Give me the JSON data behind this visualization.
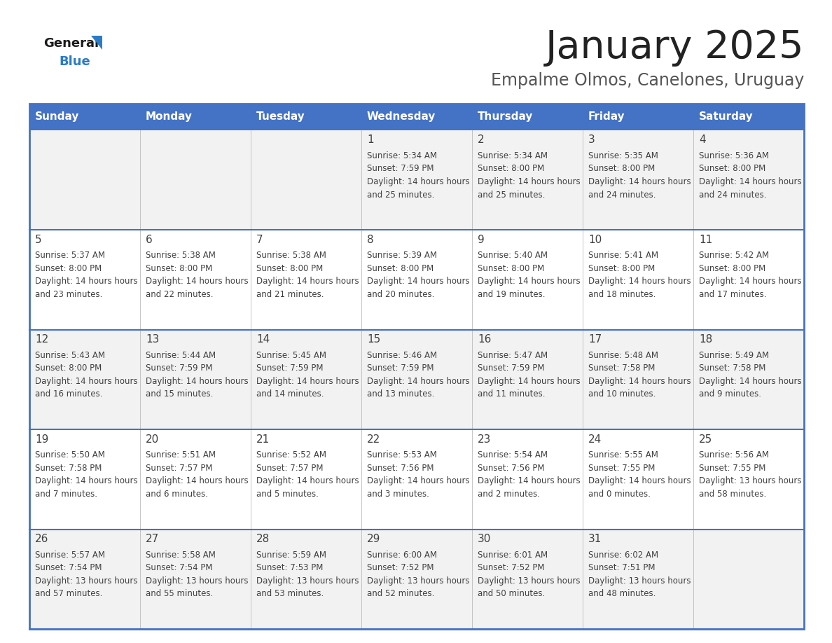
{
  "title": "January 2025",
  "subtitle": "Empalme Olmos, Canelones, Uruguay",
  "days_of_week": [
    "Sunday",
    "Monday",
    "Tuesday",
    "Wednesday",
    "Thursday",
    "Friday",
    "Saturday"
  ],
  "header_bg": "#4472c4",
  "header_text": "#ffffff",
  "cell_bg_odd": "#f2f2f2",
  "cell_bg_even": "#ffffff",
  "text_color": "#404040",
  "border_color": "#4472c4",
  "line_color": "#4472c4",
  "title_color": "#222222",
  "subtitle_color": "#555555",
  "logo_black": "#1a1a1a",
  "logo_blue": "#2a7cc7",
  "calendar_data": [
    [
      null,
      null,
      null,
      {
        "day": "1",
        "sunrise": "5:34 AM",
        "sunset": "7:59 PM",
        "daylight": "14 hours and 25 minutes"
      },
      {
        "day": "2",
        "sunrise": "5:34 AM",
        "sunset": "8:00 PM",
        "daylight": "14 hours and 25 minutes"
      },
      {
        "day": "3",
        "sunrise": "5:35 AM",
        "sunset": "8:00 PM",
        "daylight": "14 hours and 24 minutes"
      },
      {
        "day": "4",
        "sunrise": "5:36 AM",
        "sunset": "8:00 PM",
        "daylight": "14 hours and 24 minutes"
      }
    ],
    [
      {
        "day": "5",
        "sunrise": "5:37 AM",
        "sunset": "8:00 PM",
        "daylight": "14 hours and 23 minutes"
      },
      {
        "day": "6",
        "sunrise": "5:38 AM",
        "sunset": "8:00 PM",
        "daylight": "14 hours and 22 minutes"
      },
      {
        "day": "7",
        "sunrise": "5:38 AM",
        "sunset": "8:00 PM",
        "daylight": "14 hours and 21 minutes"
      },
      {
        "day": "8",
        "sunrise": "5:39 AM",
        "sunset": "8:00 PM",
        "daylight": "14 hours and 20 minutes"
      },
      {
        "day": "9",
        "sunrise": "5:40 AM",
        "sunset": "8:00 PM",
        "daylight": "14 hours and 19 minutes"
      },
      {
        "day": "10",
        "sunrise": "5:41 AM",
        "sunset": "8:00 PM",
        "daylight": "14 hours and 18 minutes"
      },
      {
        "day": "11",
        "sunrise": "5:42 AM",
        "sunset": "8:00 PM",
        "daylight": "14 hours and 17 minutes"
      }
    ],
    [
      {
        "day": "12",
        "sunrise": "5:43 AM",
        "sunset": "8:00 PM",
        "daylight": "14 hours and 16 minutes"
      },
      {
        "day": "13",
        "sunrise": "5:44 AM",
        "sunset": "7:59 PM",
        "daylight": "14 hours and 15 minutes"
      },
      {
        "day": "14",
        "sunrise": "5:45 AM",
        "sunset": "7:59 PM",
        "daylight": "14 hours and 14 minutes"
      },
      {
        "day": "15",
        "sunrise": "5:46 AM",
        "sunset": "7:59 PM",
        "daylight": "14 hours and 13 minutes"
      },
      {
        "day": "16",
        "sunrise": "5:47 AM",
        "sunset": "7:59 PM",
        "daylight": "14 hours and 11 minutes"
      },
      {
        "day": "17",
        "sunrise": "5:48 AM",
        "sunset": "7:58 PM",
        "daylight": "14 hours and 10 minutes"
      },
      {
        "day": "18",
        "sunrise": "5:49 AM",
        "sunset": "7:58 PM",
        "daylight": "14 hours and 9 minutes"
      }
    ],
    [
      {
        "day": "19",
        "sunrise": "5:50 AM",
        "sunset": "7:58 PM",
        "daylight": "14 hours and 7 minutes"
      },
      {
        "day": "20",
        "sunrise": "5:51 AM",
        "sunset": "7:57 PM",
        "daylight": "14 hours and 6 minutes"
      },
      {
        "day": "21",
        "sunrise": "5:52 AM",
        "sunset": "7:57 PM",
        "daylight": "14 hours and 5 minutes"
      },
      {
        "day": "22",
        "sunrise": "5:53 AM",
        "sunset": "7:56 PM",
        "daylight": "14 hours and 3 minutes"
      },
      {
        "day": "23",
        "sunrise": "5:54 AM",
        "sunset": "7:56 PM",
        "daylight": "14 hours and 2 minutes"
      },
      {
        "day": "24",
        "sunrise": "5:55 AM",
        "sunset": "7:55 PM",
        "daylight": "14 hours and 0 minutes"
      },
      {
        "day": "25",
        "sunrise": "5:56 AM",
        "sunset": "7:55 PM",
        "daylight": "13 hours and 58 minutes"
      }
    ],
    [
      {
        "day": "26",
        "sunrise": "5:57 AM",
        "sunset": "7:54 PM",
        "daylight": "13 hours and 57 minutes"
      },
      {
        "day": "27",
        "sunrise": "5:58 AM",
        "sunset": "7:54 PM",
        "daylight": "13 hours and 55 minutes"
      },
      {
        "day": "28",
        "sunrise": "5:59 AM",
        "sunset": "7:53 PM",
        "daylight": "13 hours and 53 minutes"
      },
      {
        "day": "29",
        "sunrise": "6:00 AM",
        "sunset": "7:52 PM",
        "daylight": "13 hours and 52 minutes"
      },
      {
        "day": "30",
        "sunrise": "6:01 AM",
        "sunset": "7:52 PM",
        "daylight": "13 hours and 50 minutes"
      },
      {
        "day": "31",
        "sunrise": "6:02 AM",
        "sunset": "7:51 PM",
        "daylight": "13 hours and 48 minutes"
      },
      null
    ]
  ]
}
